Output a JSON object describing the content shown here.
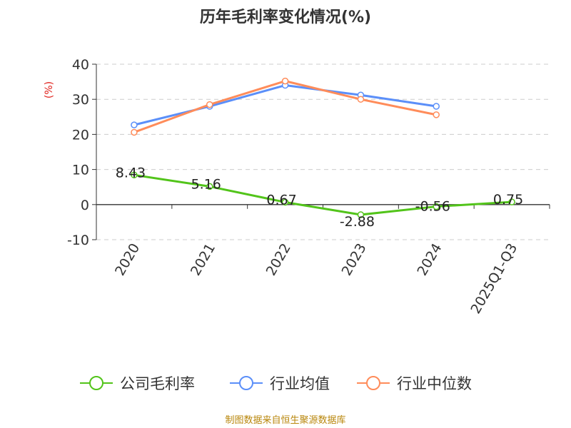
{
  "source_note": "制图数据来自恒生聚源数据库",
  "chart_data": {
    "type": "line",
    "title": "历年毛利率变化情况(%)",
    "ylabel": "(%)",
    "categories": [
      "2020",
      "2021",
      "2022",
      "2023",
      "2024",
      "2025Q1-Q3"
    ],
    "ylim": [
      -10,
      40
    ],
    "yticks": [
      -10,
      0,
      10,
      20,
      30,
      40
    ],
    "grid": true,
    "legend_position": "bottom",
    "series": [
      {
        "name": "公司毛利率",
        "color": "#52c41a",
        "values": [
          8.43,
          5.16,
          0.67,
          -2.88,
          -0.56,
          0.75
        ],
        "labels": [
          "8.43",
          "5.16",
          "0.67",
          "-2.88",
          "-0.56",
          "0.75"
        ]
      },
      {
        "name": "行业均值",
        "color": "#5b8ff9",
        "values": [
          22.7,
          28.0,
          34.0,
          31.2,
          28.0,
          null
        ]
      },
      {
        "name": "行业中位数",
        "color": "#ff8c5a",
        "values": [
          20.6,
          28.5,
          35.2,
          30.0,
          25.6,
          null
        ]
      }
    ]
  }
}
